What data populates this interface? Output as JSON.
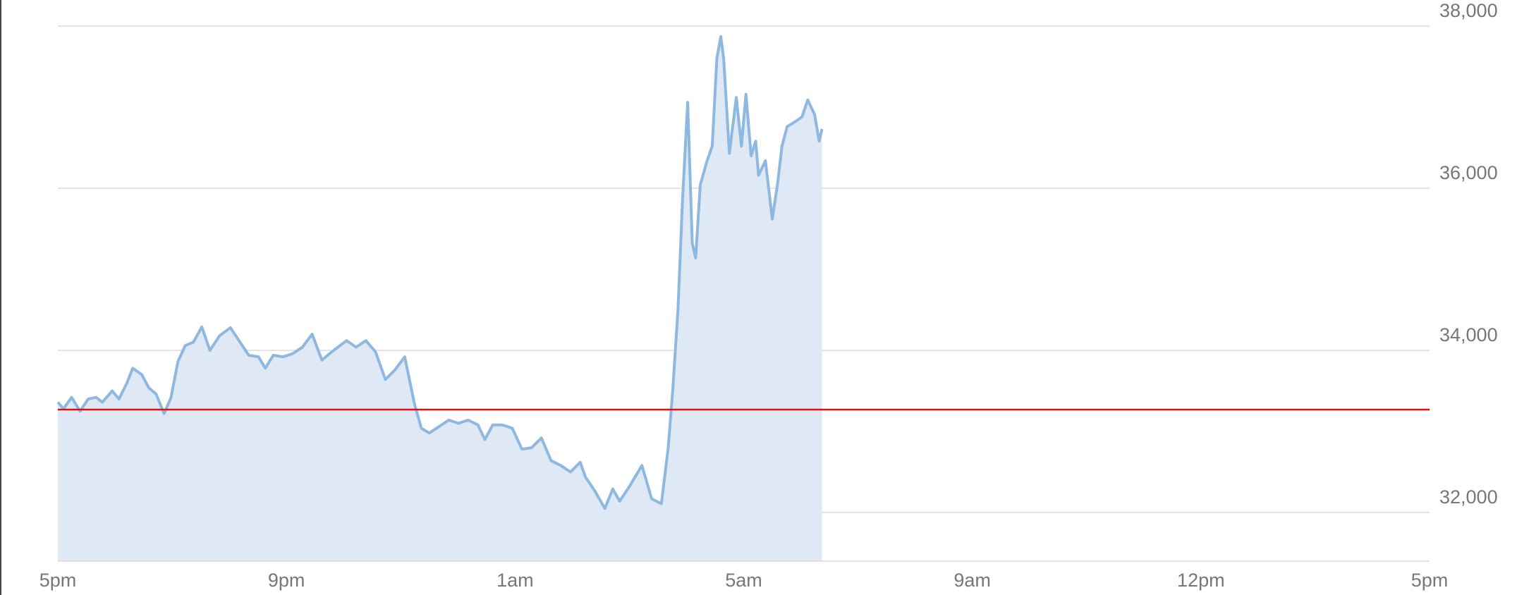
{
  "chart_data": {
    "type": "area",
    "x": [
      0,
      0.1,
      0.24,
      0.39,
      0.53,
      0.67,
      0.78,
      0.95,
      1.07,
      1.21,
      1.31,
      1.47,
      1.59,
      1.72,
      1.86,
      1.98,
      2.1,
      2.23,
      2.37,
      2.52,
      2.66,
      2.83,
      3.02,
      3.17,
      3.34,
      3.51,
      3.63,
      3.77,
      3.94,
      4.11,
      4.28,
      4.45,
      4.62,
      4.79,
      5.05,
      5.22,
      5.39,
      5.56,
      5.73,
      5.9,
      6.07,
      6.24,
      6.36,
      6.5,
      6.67,
      6.84,
      7.01,
      7.18,
      7.35,
      7.47,
      7.61,
      7.78,
      7.95,
      8.12,
      8.29,
      8.46,
      8.63,
      8.8,
      8.97,
      9.14,
      9.23,
      9.4,
      9.57,
      9.71,
      9.83,
      10.0,
      10.22,
      10.39,
      10.56,
      10.68,
      10.76,
      10.85,
      10.93,
      11.02,
      11.1,
      11.16,
      11.24,
      11.36,
      11.45,
      11.53,
      11.6,
      11.65,
      11.75,
      11.87,
      11.96,
      12.04,
      12.13,
      12.21,
      12.26,
      12.38,
      12.5,
      12.59,
      12.67,
      12.76,
      12.9,
      13.02,
      13.12,
      13.24,
      13.32,
      13.37
    ],
    "values": [
      33360,
      33280,
      33420,
      33250,
      33400,
      33420,
      33360,
      33500,
      33400,
      33600,
      33780,
      33700,
      33540,
      33460,
      33220,
      33420,
      33860,
      34060,
      34100,
      34290,
      34000,
      34180,
      34280,
      34120,
      33940,
      33920,
      33780,
      33940,
      33920,
      33960,
      34040,
      34200,
      33880,
      33980,
      34120,
      34040,
      34120,
      33980,
      33640,
      33760,
      33920,
      33340,
      33040,
      32980,
      33060,
      33140,
      33100,
      33140,
      33080,
      32900,
      33080,
      33080,
      33040,
      32780,
      32800,
      32920,
      32640,
      32580,
      32500,
      32620,
      32440,
      32260,
      32050,
      32290,
      32140,
      32320,
      32580,
      32170,
      32110,
      32800,
      33520,
      34500,
      35860,
      37060,
      35320,
      35140,
      36040,
      36340,
      36520,
      37600,
      37870,
      37600,
      36430,
      37120,
      36520,
      37160,
      36400,
      36580,
      36160,
      36340,
      35620,
      36040,
      36520,
      36760,
      36820,
      36880,
      37090,
      36910,
      36580,
      36730
    ],
    "color": "#8fb8e0",
    "fill_color": "#dfe9f5",
    "reference_line": {
      "value": 33270,
      "color": "#e01010"
    },
    "xlim": [
      0,
      24
    ],
    "xticks": [
      {
        "value": 0,
        "label": "5pm"
      },
      {
        "value": 4,
        "label": "9pm"
      },
      {
        "value": 8,
        "label": "1am"
      },
      {
        "value": 12,
        "label": "5am"
      },
      {
        "value": 16,
        "label": "9am"
      },
      {
        "value": 20,
        "label": "12pm"
      },
      {
        "value": 24,
        "label": "5pm"
      }
    ],
    "ylim": [
      31400,
      38000
    ],
    "yticks": [
      {
        "value": 32000,
        "label": "32,000"
      },
      {
        "value": 34000,
        "label": "34,000"
      },
      {
        "value": 36000,
        "label": "36,000"
      },
      {
        "value": 38000,
        "label": "38,000"
      }
    ],
    "grid": true
  }
}
